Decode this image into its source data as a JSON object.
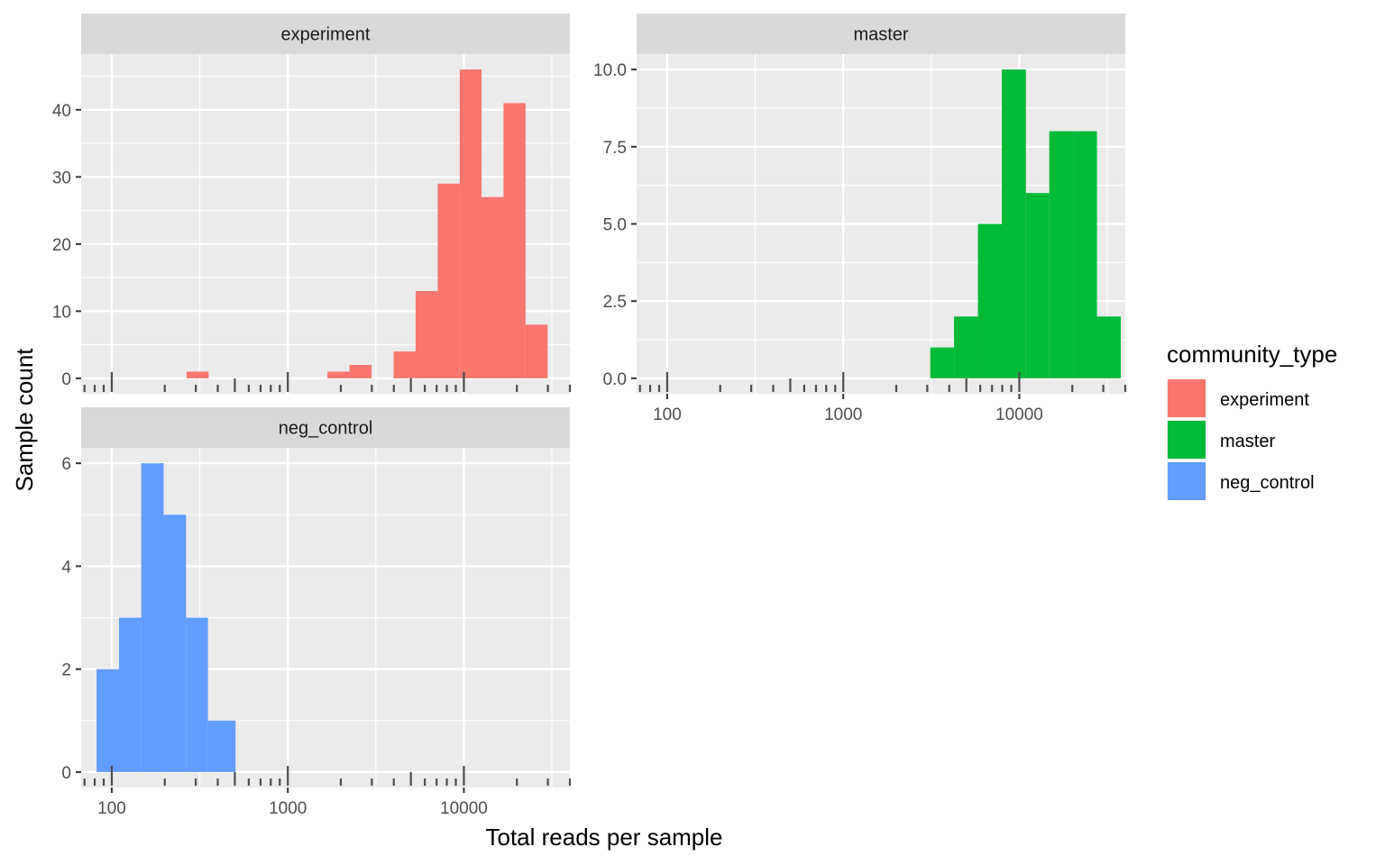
{
  "chart_data": {
    "type": "bar",
    "xlabel": "Total reads per sample",
    "ylabel": "Sample count",
    "x_scale": "log10",
    "xlim": [
      67,
      40000
    ],
    "x_ticks": [
      "100",
      "1000",
      "10000"
    ],
    "grid": true,
    "legend": {
      "title": "community_type",
      "position": "right",
      "entries": [
        "experiment",
        "master",
        "neg_control"
      ]
    },
    "panels": [
      {
        "name": "experiment",
        "color": "#F8766D",
        "ylim": [
          -2.3,
          48.3
        ],
        "y_ticks": [
          0,
          10,
          20,
          30,
          40
        ],
        "y_tick_labels": [
          "0",
          "10",
          "20",
          "30",
          "40"
        ],
        "bins": [
          {
            "x0": 266,
            "x1": 355,
            "count": 1
          },
          {
            "x0": 1680,
            "x1": 2240,
            "count": 1
          },
          {
            "x0": 2240,
            "x1": 2990,
            "count": 2
          },
          {
            "x0": 3990,
            "x1": 5320,
            "count": 4
          },
          {
            "x0": 5320,
            "x1": 7100,
            "count": 13
          },
          {
            "x0": 7100,
            "x1": 9470,
            "count": 29
          },
          {
            "x0": 9470,
            "x1": 12600,
            "count": 46
          },
          {
            "x0": 12600,
            "x1": 16800,
            "count": 27
          },
          {
            "x0": 16800,
            "x1": 22400,
            "count": 41
          },
          {
            "x0": 22400,
            "x1": 29900,
            "count": 8
          }
        ]
      },
      {
        "name": "master",
        "color": "#00BA38",
        "ylim": [
          -0.5,
          10.5
        ],
        "y_ticks": [
          0,
          2.5,
          5,
          7.5,
          10
        ],
        "y_tick_labels": [
          "0.0",
          "2.5",
          "5.0",
          "7.5",
          "10.0"
        ],
        "bins": [
          {
            "x0": 3120,
            "x1": 4260,
            "count": 1
          },
          {
            "x0": 4260,
            "x1": 5820,
            "count": 2
          },
          {
            "x0": 5820,
            "x1": 7950,
            "count": 5
          },
          {
            "x0": 7950,
            "x1": 10900,
            "count": 10
          },
          {
            "x0": 10900,
            "x1": 14800,
            "count": 6
          },
          {
            "x0": 14800,
            "x1": 20200,
            "count": 8
          },
          {
            "x0": 20200,
            "x1": 27600,
            "count": 8
          },
          {
            "x0": 27600,
            "x1": 37700,
            "count": 2
          }
        ]
      },
      {
        "name": "neg_control",
        "color": "#619CFF",
        "ylim": [
          -0.3,
          6.3
        ],
        "y_ticks": [
          0,
          2,
          4,
          6
        ],
        "y_tick_labels": [
          "0",
          "2",
          "4",
          "6"
        ],
        "bins": [
          {
            "x0": 82,
            "x1": 110,
            "count": 2
          },
          {
            "x0": 110,
            "x1": 147,
            "count": 3
          },
          {
            "x0": 147,
            "x1": 197,
            "count": 6
          },
          {
            "x0": 197,
            "x1": 264,
            "count": 5
          },
          {
            "x0": 264,
            "x1": 352,
            "count": 3
          },
          {
            "x0": 352,
            "x1": 505,
            "count": 1
          }
        ]
      }
    ]
  }
}
